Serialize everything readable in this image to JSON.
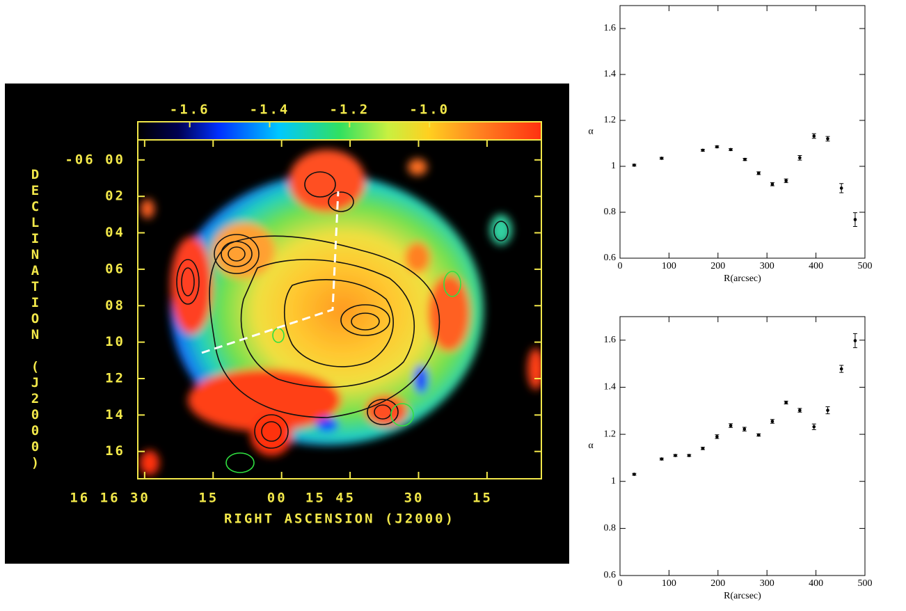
{
  "chart_data": [
    {
      "type": "image",
      "xlabel": "RIGHT ASCENSION (J2000)",
      "ylabel": "DECLINATION (J2000)",
      "xlim": [
        -1.5,
        86.9
      ],
      "xticks": [
        {
          "value": 0,
          "label": "16 16 30"
        },
        {
          "value": 15,
          "label": "15"
        },
        {
          "value": 30,
          "label": "00"
        },
        {
          "value": 45,
          "label": "15 45"
        },
        {
          "value": 60,
          "label": "30"
        },
        {
          "value": 75,
          "label": "15"
        }
      ],
      "ylim": [
        17.5,
        -1.1
      ],
      "yticks": [
        {
          "value": 0,
          "label": "-06 00"
        },
        {
          "value": 2,
          "label": "02"
        },
        {
          "value": 4,
          "label": "04"
        },
        {
          "value": 6,
          "label": "06"
        },
        {
          "value": 8,
          "label": "08"
        },
        {
          "value": 10,
          "label": "10"
        },
        {
          "value": 12,
          "label": "12"
        },
        {
          "value": 14,
          "label": "14"
        },
        {
          "value": 16,
          "label": "16"
        }
      ],
      "colorbar_lim": [
        -1.73,
        -0.72
      ],
      "colorbar_ticks": [
        -1.6,
        -1.4,
        -1.2,
        {
          "value": -1.0,
          "label": "-1.0"
        }
      ]
    },
    {
      "type": "scatter",
      "xlabel": "R(arcsec)",
      "ylabel": "α",
      "color": "#000000",
      "xlim": [
        0,
        500
      ],
      "xticks": [
        0,
        100,
        200,
        300,
        400,
        500
      ],
      "ylim": [
        0.6,
        1.7
      ],
      "yticks": [
        0.6,
        0.8,
        1,
        1.2,
        1.4,
        1.6
      ],
      "x": [
        29,
        85,
        169,
        198,
        226,
        255,
        283,
        311,
        339,
        367,
        396,
        424,
        452,
        480
      ],
      "values": [
        1.005,
        1.035,
        1.07,
        1.085,
        1.073,
        1.03,
        0.97,
        0.922,
        0.937,
        1.037,
        1.132,
        1.12,
        0.905,
        0.768
      ],
      "errors": [
        0.004,
        0.004,
        0.004,
        0.004,
        0.004,
        0.005,
        0.006,
        0.007,
        0.008,
        0.01,
        0.01,
        0.01,
        0.02,
        0.03
      ]
    },
    {
      "type": "scatter",
      "xlabel": "R(arcsec)",
      "ylabel": "α",
      "color": "#000000",
      "xlim": [
        0,
        500
      ],
      "xticks": [
        0,
        100,
        200,
        300,
        400,
        500
      ],
      "ylim": [
        0.6,
        1.7
      ],
      "yticks": [
        0.6,
        0.8,
        1,
        1.2,
        1.4,
        1.6
      ],
      "x": [
        29,
        85,
        113,
        141,
        169,
        198,
        226,
        254,
        283,
        311,
        339,
        367,
        396,
        424,
        452,
        480
      ],
      "values": [
        1.03,
        1.095,
        1.11,
        1.11,
        1.14,
        1.19,
        1.237,
        1.222,
        1.197,
        1.255,
        1.335,
        1.302,
        1.232,
        1.302,
        1.478,
        1.598
      ],
      "errors": [
        0.004,
        0.004,
        0.004,
        0.004,
        0.005,
        0.008,
        0.008,
        0.008,
        0.005,
        0.008,
        0.006,
        0.008,
        0.012,
        0.015,
        0.015,
        0.03
      ]
    }
  ]
}
